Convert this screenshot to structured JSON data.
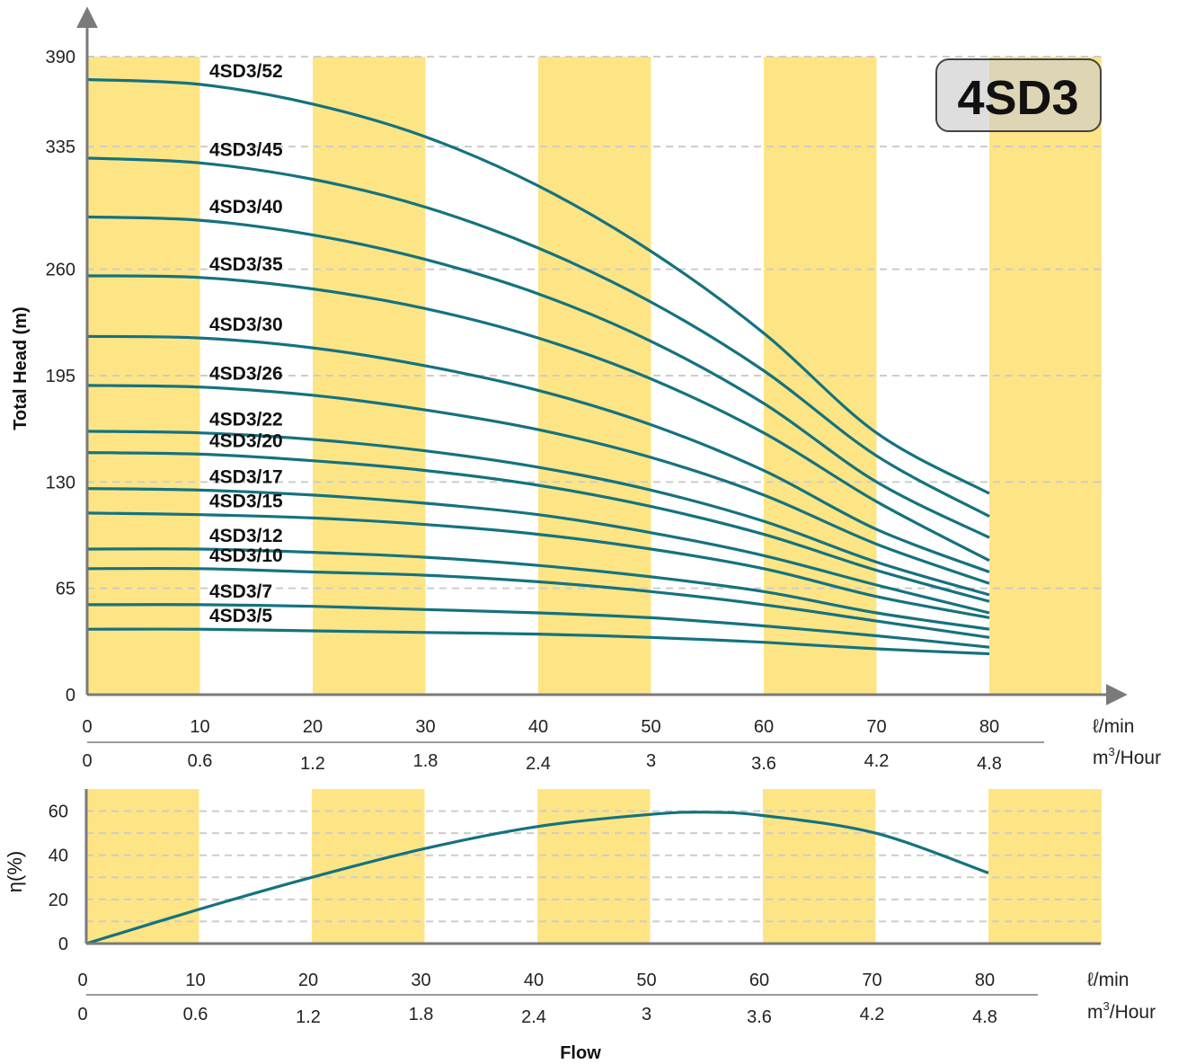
{
  "badge": "4SD3",
  "colors": {
    "curve": "#15727f",
    "band": "#fde585",
    "grid": "#cccccc",
    "axis": "#7a7a7a"
  },
  "chart_data": [
    {
      "type": "line",
      "ylabel": "Total Head (m)",
      "yticks": [
        0,
        65,
        130,
        195,
        260,
        335,
        390
      ],
      "ylim": [
        0,
        390
      ],
      "xlim": [
        0,
        80
      ],
      "xticks_lmin": [
        "0",
        "10",
        "20",
        "30",
        "40",
        "50",
        "60",
        "70",
        "80"
      ],
      "xticks_m3h": [
        "0",
        "0.6",
        "1.2",
        "1.8",
        "2.4",
        "3",
        "3.6",
        "4.2",
        "4.8"
      ],
      "xunit_lmin": "ℓ/min",
      "xunit_m3h_base": "m",
      "xunit_m3h_sup": "3",
      "xunit_m3h_rest": "/Hour",
      "grid": "horizontal dashed",
      "series": [
        {
          "name": "4SD3/52",
          "x": [
            0,
            10,
            20,
            30,
            40,
            50,
            60,
            70,
            80
          ],
          "y": [
            376,
            373,
            361,
            341,
            311,
            271,
            221,
            160,
            123
          ]
        },
        {
          "name": "4SD3/45",
          "x": [
            0,
            10,
            20,
            30,
            40,
            50,
            60,
            70,
            80
          ],
          "y": [
            328,
            325,
            315,
            298,
            273,
            240,
            198,
            146,
            109
          ]
        },
        {
          "name": "4SD3/40",
          "x": [
            0,
            10,
            20,
            30,
            40,
            50,
            60,
            70,
            80
          ],
          "y": [
            292,
            290,
            281,
            266,
            245,
            216,
            178,
            130,
            96
          ]
        },
        {
          "name": "4SD3/35",
          "x": [
            0,
            10,
            20,
            30,
            40,
            50,
            60,
            70,
            80
          ],
          "y": [
            256,
            255,
            248,
            236,
            218,
            193,
            160,
            118,
            82
          ]
        },
        {
          "name": "4SD3/30",
          "x": [
            0,
            10,
            20,
            30,
            40,
            50,
            60,
            70,
            80
          ],
          "y": [
            219,
            218,
            212,
            201,
            186,
            165,
            137,
            101,
            75
          ]
        },
        {
          "name": "4SD3/26",
          "x": [
            0,
            10,
            20,
            30,
            40,
            50,
            60,
            70,
            80
          ],
          "y": [
            189,
            188,
            183,
            174,
            162,
            145,
            122,
            92,
            68
          ]
        },
        {
          "name": "4SD3/22",
          "x": [
            0,
            10,
            20,
            30,
            40,
            50,
            60,
            70,
            80
          ],
          "y": [
            161,
            160,
            156,
            149,
            139,
            125,
            106,
            81,
            61
          ]
        },
        {
          "name": "4SD3/20",
          "x": [
            0,
            10,
            20,
            30,
            40,
            50,
            60,
            70,
            80
          ],
          "y": [
            148,
            147,
            143,
            137,
            128,
            115,
            98,
            76,
            57
          ]
        },
        {
          "name": "4SD3/17",
          "x": [
            0,
            10,
            20,
            30,
            40,
            50,
            60,
            70,
            80
          ],
          "y": [
            126,
            125,
            122,
            117,
            110,
            99,
            85,
            67,
            50
          ]
        },
        {
          "name": "4SD3/15",
          "x": [
            0,
            10,
            20,
            30,
            40,
            50,
            60,
            70,
            80
          ],
          "y": [
            111,
            110,
            108,
            104,
            98,
            89,
            77,
            60,
            47
          ]
        },
        {
          "name": "4SD3/12",
          "x": [
            0,
            10,
            20,
            30,
            40,
            50,
            60,
            70,
            80
          ],
          "y": [
            89,
            89,
            87,
            84,
            79,
            72,
            63,
            50,
            40
          ]
        },
        {
          "name": "4SD3/10",
          "x": [
            0,
            10,
            20,
            30,
            40,
            50,
            60,
            70,
            80
          ],
          "y": [
            77,
            77,
            75,
            73,
            69,
            63,
            55,
            45,
            35
          ]
        },
        {
          "name": "4SD3/7",
          "x": [
            0,
            10,
            20,
            30,
            40,
            50,
            60,
            70,
            80
          ],
          "y": [
            55,
            55,
            54,
            52,
            50,
            47,
            42,
            36,
            29
          ]
        },
        {
          "name": "4SD3/5",
          "x": [
            0,
            10,
            20,
            30,
            40,
            50,
            60,
            70,
            80
          ],
          "y": [
            40,
            40,
            39,
            38,
            37,
            35,
            32,
            28,
            25
          ]
        }
      ]
    },
    {
      "type": "line",
      "ylabel": "η(%)",
      "yticks": [
        0,
        20,
        40,
        60
      ],
      "ylim": [
        0,
        70
      ],
      "xlim": [
        0,
        80
      ],
      "xticks_lmin": [
        "0",
        "10",
        "20",
        "30",
        "40",
        "50",
        "60",
        "70",
        "80"
      ],
      "xticks_m3h": [
        "0",
        "0.6",
        "1.2",
        "1.8",
        "2.4",
        "3",
        "3.6",
        "4.2",
        "4.8"
      ],
      "xunit_lmin": "ℓ/min",
      "xunit_m3h_base": "m",
      "xunit_m3h_sup": "3",
      "xunit_m3h_rest": "/Hour",
      "xlabel": "Flow",
      "grid": "horizontal dashed",
      "series": [
        {
          "x": [
            0,
            10,
            20,
            30,
            40,
            50,
            55,
            60,
            70,
            80
          ],
          "y": [
            0,
            15.5,
            30,
            43,
            53,
            58.5,
            59.5,
            58,
            50,
            32
          ]
        }
      ]
    }
  ]
}
